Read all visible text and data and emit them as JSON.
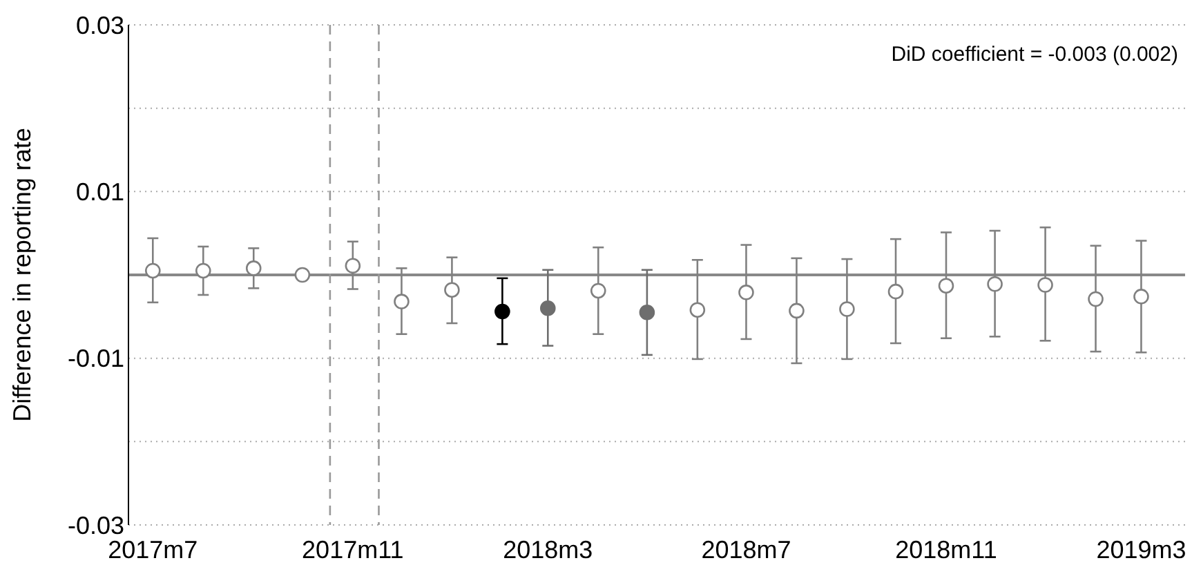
{
  "chart_data": {
    "type": "scatter",
    "ylabel": "Difference in reporting rate",
    "annotations": [
      "DiD coefficient = -0.003 (0.002)"
    ],
    "x": [
      "2017-07",
      "2017-08",
      "2017-09",
      "2017-10",
      "2017-11",
      "2017-12",
      "2018-01",
      "2018-02",
      "2018-03",
      "2018-04",
      "2018-05",
      "2018-06",
      "2018-07",
      "2018-08",
      "2018-09",
      "2018-10",
      "2018-11",
      "2018-12",
      "2019-01",
      "2019-02",
      "2019-03"
    ],
    "xlim": [
      "2017-06-16",
      "2019-03-28"
    ],
    "xticks": [
      {
        "value": "2017-07",
        "label": "2017m7"
      },
      {
        "value": "2017-11",
        "label": "2017m11"
      },
      {
        "value": "2018-03",
        "label": "2018m3"
      },
      {
        "value": "2018-07",
        "label": "2018m7"
      },
      {
        "value": "2018-11",
        "label": "2018m11"
      },
      {
        "value": "2019-03",
        "label": "2019m3"
      }
    ],
    "ylim": [
      -0.03,
      0.03
    ],
    "yticks": [
      -0.03,
      {
        "value": -0.02,
        "label": null
      },
      -0.01,
      {
        "value": 0,
        "label": null
      },
      0.01,
      {
        "value": 0.02,
        "label": null
      },
      0.03
    ],
    "grid": "y",
    "marker": "circle",
    "ref_lines": [
      {
        "axis": "y",
        "value": 0,
        "color": "#888888",
        "line_style": "solid"
      },
      {
        "axis": "x",
        "value": "2017-10-18",
        "color": "#999999",
        "line_style": "dashed"
      },
      {
        "axis": "x",
        "value": "2017-11-17",
        "color": "#999999",
        "line_style": "dashed"
      }
    ],
    "series": [
      {
        "color": "#808080",
        "values": [
          0.0005,
          0.0005,
          0.0008,
          0,
          0.0011,
          -0.0032,
          -0.0018,
          null,
          null,
          -0.0019,
          null,
          -0.0042,
          -0.0021,
          -0.0043,
          -0.0041,
          -0.002,
          -0.0013,
          -0.0011,
          -0.0012,
          -0.0029,
          -0.0026
        ],
        "errors": [
          [
            -0.0033,
            0.0044
          ],
          [
            -0.0024,
            0.0034
          ],
          [
            -0.0016,
            0.0032
          ],
          null,
          [
            -0.0017,
            0.004
          ],
          [
            -0.0071,
            0.0008
          ],
          [
            -0.0058,
            0.0021
          ],
          null,
          null,
          [
            -0.0071,
            0.0033
          ],
          null,
          [
            -0.0101,
            0.0018
          ],
          [
            -0.0077,
            0.0036
          ],
          [
            -0.0106,
            0.002
          ],
          [
            -0.0101,
            0.0019
          ],
          [
            -0.0082,
            0.0043
          ],
          [
            -0.0076,
            0.0051
          ],
          [
            -0.0074,
            0.0053
          ],
          [
            -0.0079,
            0.0057
          ],
          [
            -0.0092,
            0.0035
          ],
          [
            -0.0093,
            0.0041
          ]
        ]
      },
      {
        "color": "#000000",
        "values": [
          null,
          null,
          null,
          null,
          null,
          null,
          null,
          -0.0044,
          null,
          null,
          null,
          null,
          null,
          null,
          null,
          null,
          null,
          null,
          null,
          null,
          null
        ],
        "errors": [
          null,
          null,
          null,
          null,
          null,
          null,
          null,
          [
            -0.0083,
            -0.0004
          ],
          null,
          null,
          null,
          null,
          null,
          null,
          null,
          null,
          null,
          null,
          null,
          null,
          null
        ]
      },
      {
        "color": "#6e6e6e",
        "values": [
          null,
          null,
          null,
          null,
          null,
          null,
          null,
          null,
          -0.004,
          null,
          -0.0045,
          null,
          null,
          null,
          null,
          null,
          null,
          null,
          null,
          null,
          null
        ],
        "errors": [
          null,
          null,
          null,
          null,
          null,
          null,
          null,
          null,
          [
            -0.0085,
            0.0006
          ],
          null,
          [
            -0.0096,
            0.0006
          ],
          null,
          null,
          null,
          null,
          null,
          null,
          null,
          null,
          null,
          null
        ]
      }
    ]
  }
}
